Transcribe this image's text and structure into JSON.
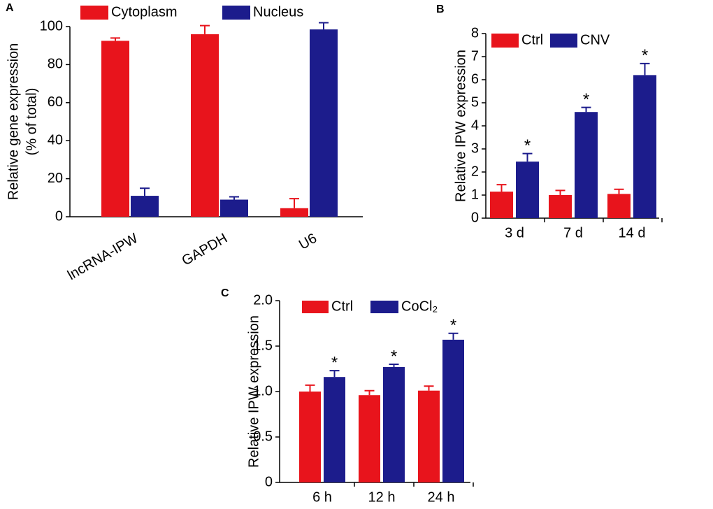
{
  "chart_data": [
    {
      "type": "bar",
      "panel_label": "A",
      "ylabel": [
        "Relative gene expression",
        "(% of total)"
      ],
      "categories": [
        "lncRNA-IPW",
        "GAPDH",
        "U6"
      ],
      "series": [
        {
          "name": "Cytoplasm",
          "color": "#e8141c",
          "values": [
            92.5,
            96,
            4.5
          ],
          "errors": [
            1.5,
            4.5,
            5
          ]
        },
        {
          "name": "Nucleus",
          "color": "#1c1c8c",
          "values": [
            11,
            9,
            98.5
          ],
          "errors": [
            4,
            1.5,
            3.5
          ]
        }
      ],
      "ylim": [
        0,
        100
      ],
      "yticks": [
        0,
        20,
        40,
        60,
        80,
        100
      ]
    },
    {
      "type": "bar",
      "panel_label": "B",
      "ylabel": "Relative IPW expression",
      "categories": [
        "3 d",
        "7 d",
        "14 d"
      ],
      "series": [
        {
          "name": "Ctrl",
          "color": "#e8141c",
          "values": [
            1.15,
            1.0,
            1.05
          ],
          "errors": [
            0.3,
            0.2,
            0.2
          ]
        },
        {
          "name": "CNV",
          "color": "#1c1c8c",
          "values": [
            2.45,
            4.6,
            6.2
          ],
          "errors": [
            0.35,
            0.2,
            0.5
          ],
          "markers": [
            "*",
            "*",
            "*"
          ]
        }
      ],
      "ylim": [
        0,
        8
      ],
      "yticks": [
        0,
        1,
        2,
        3,
        4,
        5,
        6,
        7,
        8
      ]
    },
    {
      "type": "bar",
      "panel_label": "C",
      "ylabel": "Relative IPW expression",
      "categories": [
        "6 h",
        "12 h",
        "24 h"
      ],
      "series": [
        {
          "name": "Ctrl",
          "color": "#e8141c",
          "values": [
            1.0,
            0.96,
            1.01
          ],
          "errors": [
            0.07,
            0.05,
            0.05
          ]
        },
        {
          "name": "CoCl₂",
          "color": "#1c1c8c",
          "values": [
            1.16,
            1.27,
            1.57
          ],
          "errors": [
            0.07,
            0.03,
            0.07
          ],
          "markers": [
            "*",
            "*",
            "*"
          ]
        }
      ],
      "ylim": [
        0,
        2
      ],
      "yticks": [
        0,
        0.5,
        {
          "value": 1,
          "label": "1.0"
        },
        1.5,
        {
          "value": 2,
          "label": "2.0"
        }
      ]
    }
  ]
}
